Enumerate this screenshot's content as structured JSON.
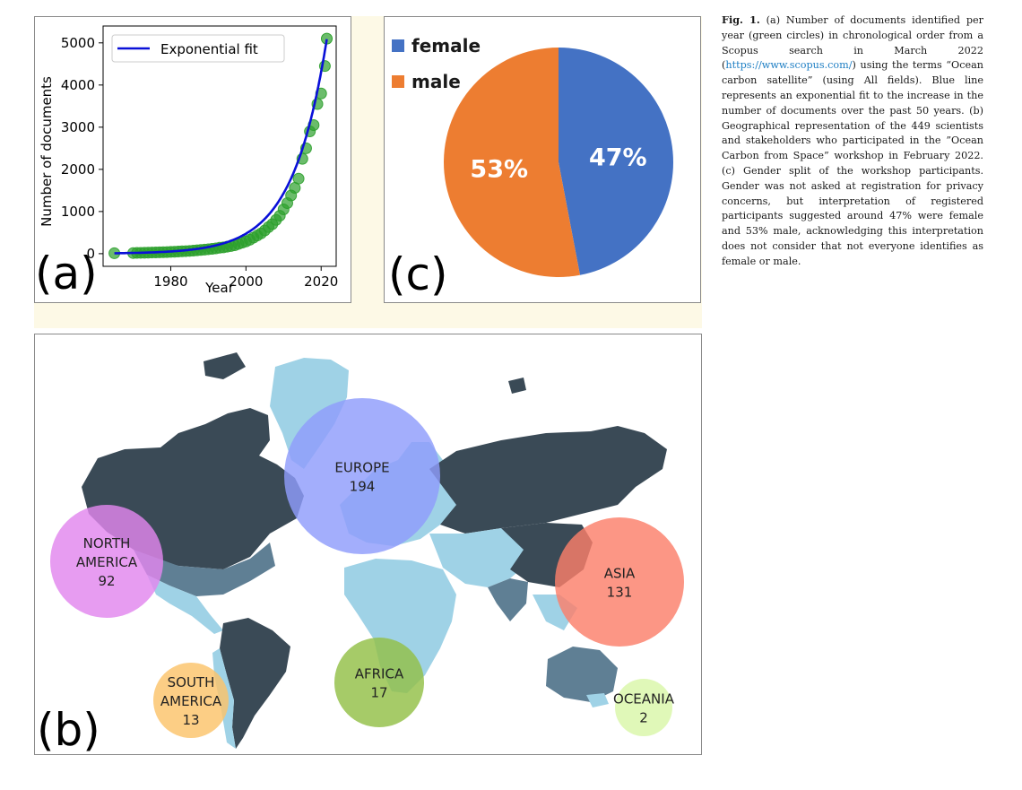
{
  "chart_data": [
    {
      "panel_label": "(a)",
      "type": "scatter",
      "xlabel": "Year",
      "ylabel": "Number of documents",
      "xlim": [
        1962,
        2024
      ],
      "ylim": [
        -300,
        5400
      ],
      "x_ticks": [
        "1980",
        "2000",
        "2020"
      ],
      "x_tick_values": [
        1980,
        2000,
        2020
      ],
      "y_ticks": [
        "0",
        "1000",
        "2000",
        "3000",
        "4000",
        "5000"
      ],
      "y_tick_values": [
        0,
        1000,
        2000,
        3000,
        4000,
        5000
      ],
      "legend": {
        "label": "Exponential fit",
        "position": "top-left"
      },
      "series": [
        {
          "kind": "points",
          "color": "#2ca02c",
          "x": [
            1965,
            1970,
            1971,
            1972,
            1973,
            1974,
            1975,
            1976,
            1977,
            1978,
            1979,
            1980,
            1981,
            1982,
            1983,
            1984,
            1985,
            1986,
            1987,
            1988,
            1989,
            1990,
            1991,
            1992,
            1993,
            1994,
            1995,
            1996,
            1997,
            1998,
            1999,
            2000,
            2001,
            2002,
            2003,
            2004,
            2005,
            2006,
            2007,
            2008,
            2009,
            2010,
            2011,
            2012,
            2013,
            2014,
            2015,
            2016,
            2017,
            2018,
            2019,
            2020,
            2021
          ],
          "y": [
            10,
            15,
            18,
            20,
            22,
            25,
            28,
            30,
            32,
            35,
            38,
            42,
            46,
            50,
            55,
            60,
            65,
            72,
            80,
            88,
            95,
            105,
            115,
            125,
            140,
            150,
            165,
            180,
            200,
            230,
            260,
            290,
            330,
            380,
            430,
            480,
            550,
            630,
            700,
            800,
            900,
            1050,
            1200,
            1380,
            1560,
            1780,
            2250,
            2500,
            2900,
            3050,
            3550,
            3800,
            4450
          ]
        },
        {
          "kind": "fit",
          "name": "Exponential fit",
          "color": "#0a10d8",
          "fit_a": 10,
          "fit_b": 0.1103,
          "fit_x0": 1965,
          "fit_range": [
            1965,
            2021.5
          ]
        }
      ],
      "extra_point": {
        "x": 2021.5,
        "y": 5100
      }
    },
    {
      "panel_label": "(c)",
      "type": "pie",
      "categories": [
        "female",
        "male"
      ],
      "values": [
        47,
        53
      ],
      "labels": [
        "47%",
        "53%"
      ],
      "colors": [
        "#4472c4",
        "#ed7d31"
      ],
      "legend_position": "top-left"
    }
  ],
  "map": {
    "panel_label": "(b)",
    "regions": [
      {
        "name_lines": [
          "NORTH",
          "AMERICA"
        ],
        "count": "92",
        "color": "#e286ee"
      },
      {
        "name_lines": [
          "EUROPE"
        ],
        "count": "194",
        "color": "#8f9cfb"
      },
      {
        "name_lines": [
          "ASIA"
        ],
        "count": "131",
        "color": "#fb7f6a"
      },
      {
        "name_lines": [
          "SOUTH",
          "AMERICA"
        ],
        "count": "13",
        "color": "#fbc36a"
      },
      {
        "name_lines": [
          "AFRICA"
        ],
        "count": "17",
        "color": "#93c047"
      },
      {
        "name_lines": [
          "OCEANIA"
        ],
        "count": "2",
        "color": "#d9f7a8"
      }
    ],
    "land_colors": {
      "dark": "#3a4a56",
      "mid": "#5f7f94",
      "light": "#9fd2e6"
    }
  },
  "caption": {
    "label": "Fig. 1.",
    "text_before_link": "(a) Number of documents identified per year (green circles) in chronological order from a Scopus search in March 2022 (",
    "link": "https://www.scopus.com/",
    "text_after_link": ") using the terms “Ocean carbon satellite” (using All fields). Blue line represents an exponential fit to the increase in the number of documents over the past 50 years. (b) Geographical representation of the 449 scientists and stakeholders who participated in the ”Ocean Carbon from Space” workshop in February 2022. (c) Gender split of the workshop participants. Gender was not asked at registration for privacy concerns, but interpretation of registered participants suggested around 47% were female and 53% male, acknowledging this interpretation does not consider that not everyone identifies as female or male."
  }
}
